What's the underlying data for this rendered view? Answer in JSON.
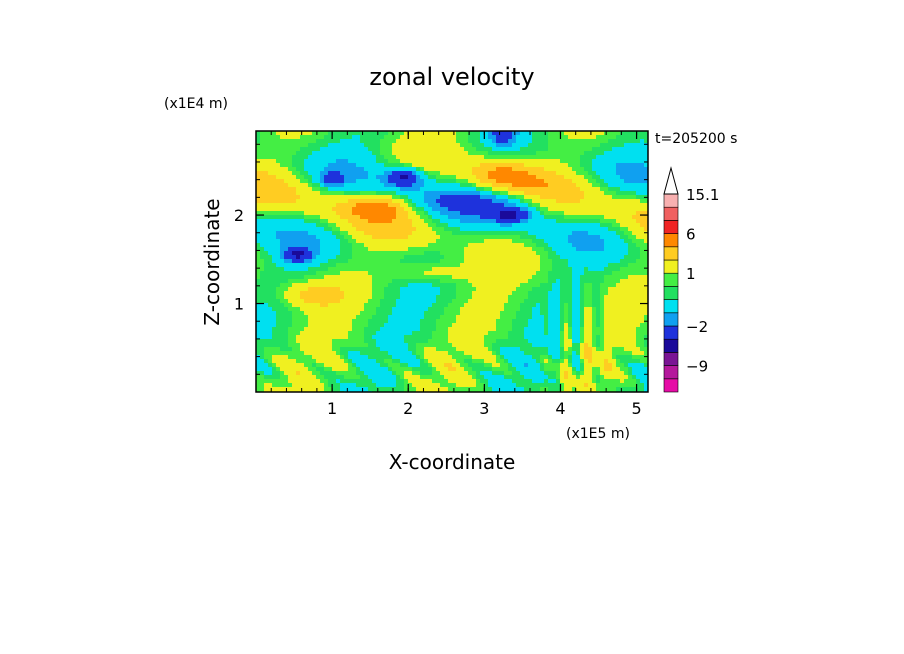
{
  "chart_data": {
    "type": "heatmap",
    "title": "zonal velocity",
    "xlabel": "X-coordinate",
    "ylabel": "Z-coordinate",
    "x_unit": "(x1E5 m)",
    "y_unit": "(x1E4 m)",
    "time_label": "t=205200 s",
    "xlim": [
      0,
      5.15
    ],
    "ylim": [
      0,
      2.95
    ],
    "x_ticks": [
      1,
      2,
      3,
      4,
      5
    ],
    "y_ticks": [
      1,
      2
    ],
    "x_tick_labels": [
      "1",
      "2",
      "3",
      "4",
      "5"
    ],
    "y_tick_labels": [
      "1",
      "2"
    ],
    "grid": false,
    "colorbar": {
      "label_values": [
        15.1,
        6,
        1,
        -2,
        -9
      ],
      "label_texts": [
        "15.1",
        "6",
        "1",
        "−2",
        "−9"
      ],
      "bins": [
        {
          "lo": -15,
          "hi": -12,
          "color": "#e60ca6"
        },
        {
          "lo": -12,
          "hi": -9,
          "color": "#b4189c"
        },
        {
          "lo": -9,
          "hi": -6,
          "color": "#7a1494"
        },
        {
          "lo": -6,
          "hi": -4,
          "color": "#1a0a9a"
        },
        {
          "lo": -4,
          "hi": -2,
          "color": "#1e32dc"
        },
        {
          "lo": -2,
          "hi": -1,
          "color": "#10a0f0"
        },
        {
          "lo": -1,
          "hi": 0,
          "color": "#00e0f0"
        },
        {
          "lo": 0,
          "hi": 0.5,
          "color": "#22e060"
        },
        {
          "lo": 0.5,
          "hi": 1,
          "color": "#44ee44"
        },
        {
          "lo": 1,
          "hi": 2,
          "color": "#f0f020"
        },
        {
          "lo": 2,
          "hi": 3,
          "color": "#ffcc22"
        },
        {
          "lo": 3,
          "hi": 6,
          "color": "#ff8800"
        },
        {
          "lo": 6,
          "hi": 9,
          "color": "#f02424"
        },
        {
          "lo": 9,
          "hi": 12,
          "color": "#f06060"
        },
        {
          "lo": 12,
          "hi": 15.1,
          "color": "#f8b0b0"
        },
        {
          "lo": 15.1,
          "hi": 18,
          "color": "#ffffff"
        }
      ]
    }
  }
}
